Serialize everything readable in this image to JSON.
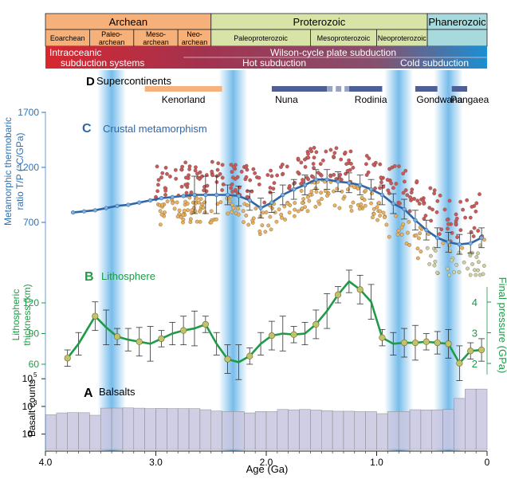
{
  "eons": [
    {
      "name": "Archean",
      "from": 4.0,
      "to": 2.5,
      "color": "#f6b07a"
    },
    {
      "name": "Proterozoic",
      "from": 2.5,
      "to": 0.541,
      "color": "#d8e3a8"
    },
    {
      "name": "Phanerozoic",
      "from": 0.541,
      "to": 0.0,
      "color": "#a7d9dd"
    }
  ],
  "eras": [
    {
      "lines": [
        "Eoarchean"
      ],
      "from": 4.0,
      "to": 3.6,
      "color": "#f6b07a"
    },
    {
      "lines": [
        "Paleo-",
        "archean"
      ],
      "from": 3.6,
      "to": 3.2,
      "color": "#f6b07a"
    },
    {
      "lines": [
        "Meso-",
        "archean"
      ],
      "from": 3.2,
      "to": 2.8,
      "color": "#f6b07a"
    },
    {
      "lines": [
        "Neo-",
        "archean"
      ],
      "from": 2.8,
      "to": 2.5,
      "color": "#f6b07a"
    },
    {
      "lines": [
        "Paleoproterozoic"
      ],
      "from": 2.5,
      "to": 1.6,
      "color": "#d8e3a8"
    },
    {
      "lines": [
        "Mesoproterozoic"
      ],
      "from": 1.6,
      "to": 1.0,
      "color": "#d8e3a8"
    },
    {
      "lines": [
        "Neoproterozoic"
      ],
      "from": 1.0,
      "to": 0.541,
      "color": "#d8e3a8"
    },
    {
      "lines": [
        ""
      ],
      "from": 0.541,
      "to": 0.0,
      "color": "#a7d9dd"
    }
  ],
  "subduction": {
    "intraoceanic": [
      "Intraoceanic",
      "subduction systems"
    ],
    "wilson": "Wilson-cycle plate subduction",
    "hot": "Hot subduction",
    "cold": "Cold subduction",
    "colors": {
      "red": "#d7282f",
      "mid": "#9a3d57",
      "blue": "#1b8fd2"
    }
  },
  "highlight_bands": [
    3.4,
    2.3,
    0.8,
    0.35
  ],
  "supercontinents": {
    "letter": "D",
    "title": "Supercontinents",
    "bars": [
      {
        "name": "Kenorland",
        "from": 3.1,
        "to": 2.4,
        "color": "#f5b27e",
        "label_at": 2.75
      },
      {
        "name": "Nuna",
        "from": 1.95,
        "to": 1.45,
        "color": "#4d5f94",
        "label_at": 1.92
      },
      {
        "name": "Rodinia",
        "from": 1.25,
        "to": 0.95,
        "color": "#4d5f94",
        "label_at": 1.2
      },
      {
        "name": "Gondwana",
        "from": 0.65,
        "to": 0.45,
        "color": "#4d5f94",
        "label_at": 0.64
      },
      {
        "name": "Pangaea",
        "from": 0.32,
        "to": 0.18,
        "color": "#4d5f94",
        "label_at": 0.33
      }
    ],
    "dashed": {
      "from": 1.45,
      "to": 1.25
    }
  },
  "panel_c": {
    "letter": "C",
    "title": "Crustal metamorphism",
    "ylabel_lines": [
      "Metamorphic thermobaric",
      "ratio T/P (°C/GPa)"
    ],
    "ticks": [
      "1700",
      "1200",
      "700"
    ],
    "tick_values": [
      1700,
      1200,
      700
    ]
  },
  "panel_b": {
    "letter": "B",
    "title": "Lithosphere",
    "left_label_lines": [
      "Lithospheric",
      "thickness (km)"
    ],
    "left_ticks": [
      "120",
      "90",
      "60"
    ],
    "left_tick_values": [
      120,
      90,
      60
    ],
    "right_label": "Final pressure (GPa)",
    "right_ticks": [
      "4",
      "3",
      "2"
    ],
    "right_tick_values": [
      4,
      3,
      2
    ]
  },
  "panel_a": {
    "letter": "A",
    "title": "Balsalts",
    "ylabel": "Basalt counts",
    "ticks": [
      {
        "base": "10",
        "exp": "5"
      },
      {
        "base": "10",
        "exp": "3"
      },
      {
        "base": "10",
        "exp": ""
      }
    ],
    "tick_values": [
      100000,
      1000,
      10
    ]
  },
  "xaxis": {
    "label": "Age (Ga)",
    "ticks": [
      "4.0",
      "3.0",
      "2.0",
      "1.0",
      "0"
    ],
    "tick_values": [
      4.0,
      3.0,
      2.0,
      1.0,
      0.0
    ]
  },
  "colors": {
    "c_line": "#2e66a8",
    "b_line": "#1e9b47",
    "dot_fill": "#c2c26a",
    "bars": "#c8c6e1",
    "ticks_c": "#2e72b6",
    "ticks_b": "#1e9b47"
  },
  "chart_data": [
    {
      "type": "line",
      "title": "Crustal metamorphism",
      "xlabel": "Age (Ga)",
      "ylabel": "Metamorphic thermobaric ratio T/P (°C/GPa)",
      "xlim": [
        4.0,
        0.0
      ],
      "series": [
        {
          "values": [
            [
              3.75,
              790
            ],
            [
              3.65,
              800
            ],
            [
              3.55,
              810
            ],
            [
              3.45,
              830
            ],
            [
              3.35,
              850
            ],
            [
              3.25,
              860
            ],
            [
              3.15,
              880
            ],
            [
              3.05,
              900
            ],
            [
              2.95,
              920
            ],
            [
              2.85,
              930
            ],
            [
              2.75,
              940
            ],
            [
              2.65,
              950
            ],
            [
              2.55,
              950
            ],
            [
              2.45,
              950
            ],
            [
              2.35,
              950
            ],
            [
              2.25,
              940
            ],
            [
              2.15,
              900
            ],
            [
              2.05,
              830
            ],
            [
              1.95,
              880
            ],
            [
              1.85,
              950
            ],
            [
              1.75,
              1000
            ],
            [
              1.65,
              1040
            ],
            [
              1.55,
              1090
            ],
            [
              1.45,
              1090
            ],
            [
              1.35,
              1070
            ],
            [
              1.25,
              1060
            ],
            [
              1.15,
              1040
            ],
            [
              1.05,
              1000
            ],
            [
              0.95,
              950
            ],
            [
              0.85,
              870
            ],
            [
              0.75,
              820
            ],
            [
              0.65,
              720
            ],
            [
              0.55,
              630
            ],
            [
              0.45,
              560
            ],
            [
              0.35,
              520
            ],
            [
              0.25,
              500
            ],
            [
              0.15,
              510
            ],
            [
              0.05,
              560
            ]
          ]
        }
      ],
      "scatter_count": 512
    },
    {
      "type": "line",
      "title": "Lithosphere",
      "ylabel": "Lithospheric thickness (km)",
      "xlim": [
        4.0,
        0.0
      ],
      "series": [
        {
          "values": [
            [
              3.8,
              66
            ],
            [
              3.7,
              80
            ],
            [
              3.55,
              107
            ],
            [
              3.45,
              96
            ],
            [
              3.35,
              87
            ],
            [
              3.25,
              84
            ],
            [
              3.15,
              82
            ],
            [
              3.05,
              80
            ],
            [
              2.95,
              85
            ],
            [
              2.85,
              90
            ],
            [
              2.75,
              93
            ],
            [
              2.65,
              95
            ],
            [
              2.55,
              99
            ],
            [
              2.45,
              80
            ],
            [
              2.35,
              65
            ],
            [
              2.25,
              62
            ],
            [
              2.15,
              68
            ],
            [
              2.05,
              80
            ],
            [
              1.95,
              88
            ],
            [
              1.85,
              90
            ],
            [
              1.75,
              89
            ],
            [
              1.65,
              90
            ],
            [
              1.55,
              99
            ],
            [
              1.45,
              112
            ],
            [
              1.35,
              128
            ],
            [
              1.25,
              141
            ],
            [
              1.15,
              133
            ],
            [
              1.05,
              121
            ],
            [
              0.95,
              86
            ],
            [
              0.85,
              80
            ],
            [
              0.75,
              81
            ],
            [
              0.65,
              81
            ],
            [
              0.55,
              82
            ],
            [
              0.45,
              81
            ],
            [
              0.35,
              80
            ],
            [
              0.25,
              61
            ],
            [
              0.15,
              73
            ],
            [
              0.05,
              74
            ]
          ]
        }
      ]
    },
    {
      "type": "bar",
      "title": "Balsalts",
      "ylabel": "Basalt counts",
      "ylog": true,
      "x": [
        3.95,
        3.85,
        3.75,
        3.65,
        3.55,
        3.45,
        3.35,
        3.25,
        3.15,
        3.05,
        2.95,
        2.85,
        2.75,
        2.65,
        2.55,
        2.45,
        2.35,
        2.25,
        2.15,
        2.05,
        1.95,
        1.85,
        1.75,
        1.65,
        1.55,
        1.45,
        1.35,
        1.25,
        1.15,
        1.05,
        0.95,
        0.85,
        0.75,
        0.65,
        0.55,
        0.45,
        0.35,
        0.25,
        0.15,
        0.05
      ],
      "values": [
        250,
        340,
        360,
        350,
        230,
        750,
        760,
        780,
        750,
        700,
        720,
        700,
        700,
        700,
        580,
        460,
        420,
        430,
        340,
        430,
        420,
        600,
        570,
        600,
        550,
        500,
        450,
        450,
        420,
        420,
        300,
        420,
        430,
        580,
        560,
        570,
        600,
        3800,
        18000,
        18000
      ]
    }
  ]
}
